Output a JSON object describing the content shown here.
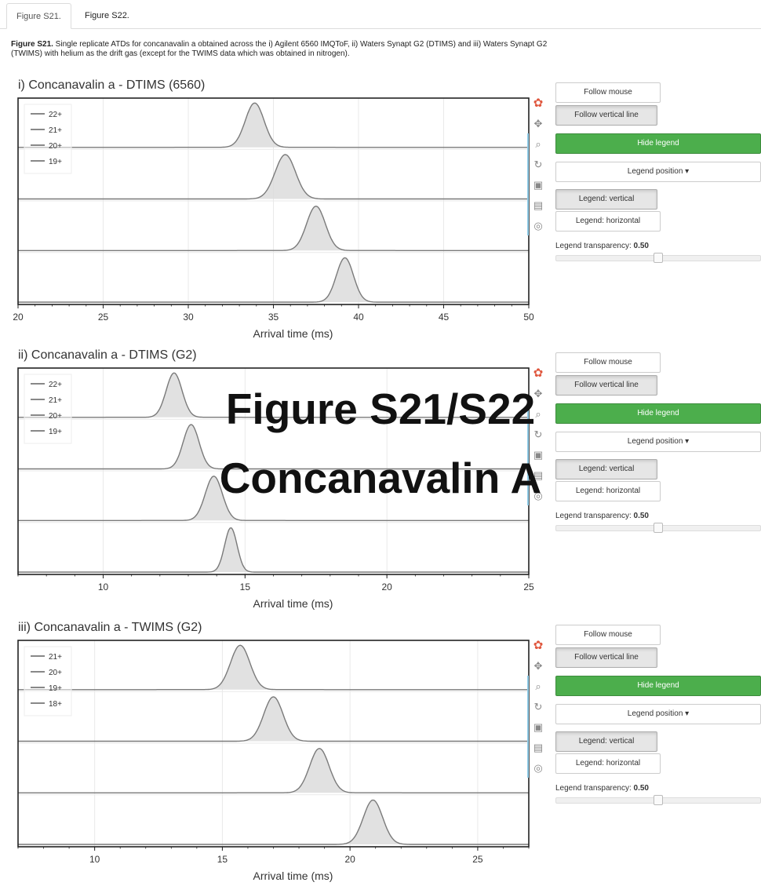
{
  "tabs": [
    {
      "label": "Figure S21."
    },
    {
      "label": "Figure S22."
    }
  ],
  "caption": {
    "bold": "Figure S21.",
    "text": " Single replicate ATDs for concanavalin a obtained across the i) Agilent 6560 IMQToF, ii) Waters Synapt G2 (DTIMS) and iii) Waters Synapt G2 (TWIMS) with helium as the drift gas (except for the TWIMS data which was obtained in nitrogen)."
  },
  "overlay": {
    "line1": "Figure S21/S22",
    "line2": "Concanavalin A"
  },
  "controls": {
    "follow_mouse": "Follow mouse",
    "follow_vertical_line": "Follow vertical line",
    "hide_legend": "Hide legend",
    "legend_position": "Legend position",
    "legend_vertical": "Legend: vertical",
    "legend_horizontal": "Legend: horizontal",
    "legend_transparency_label": "Legend transparency:",
    "legend_transparency_value": "0.50",
    "hide_legend_color": "#4cae4c"
  },
  "toolbar_icons": [
    "bokeh-logo-icon",
    "pan-icon",
    "zoom-icon",
    "reset-icon",
    "save-icon",
    "hover-icon",
    "crosshair-icon"
  ],
  "chart_data": [
    {
      "type": "area",
      "title": "i) Concanavalin a - DTIMS (6560)",
      "xlabel": "Arrival time (ms)",
      "ylabel": "",
      "xlim": [
        20,
        50
      ],
      "xticks": [
        20,
        25,
        30,
        35,
        40,
        45,
        50
      ],
      "grid": true,
      "legend_position": "top-left",
      "series": [
        {
          "name": "22+",
          "peak_center": 33.9,
          "peak_width": 0.55
        },
        {
          "name": "21+",
          "peak_center": 35.7,
          "peak_width": 0.6
        },
        {
          "name": "20+",
          "peak_center": 37.5,
          "peak_width": 0.55
        },
        {
          "name": "19+",
          "peak_center": 39.2,
          "peak_width": 0.5
        }
      ]
    },
    {
      "type": "area",
      "title": "ii) Concanavalin a - DTIMS (G2)",
      "xlabel": "Arrival time (ms)",
      "ylabel": "",
      "xlim": [
        7,
        25
      ],
      "xticks": [
        10,
        15,
        20,
        25
      ],
      "grid": true,
      "legend_position": "top-left",
      "series": [
        {
          "name": "22+",
          "peak_center": 12.5,
          "peak_width": 0.28
        },
        {
          "name": "21+",
          "peak_center": 13.1,
          "peak_width": 0.28
        },
        {
          "name": "20+",
          "peak_center": 13.9,
          "peak_width": 0.3
        },
        {
          "name": "19+",
          "peak_center": 14.5,
          "peak_width": 0.22
        }
      ]
    },
    {
      "type": "area",
      "title": "iii) Concanavalin a - TWIMS (G2)",
      "xlabel": "Arrival time (ms)",
      "ylabel": "",
      "xlim": [
        7,
        27
      ],
      "xticks": [
        10,
        15,
        20,
        25
      ],
      "grid": true,
      "legend_position": "top-left",
      "series": [
        {
          "name": "21+",
          "peak_center": 15.7,
          "peak_width": 0.38
        },
        {
          "name": "20+",
          "peak_center": 17.0,
          "peak_width": 0.38
        },
        {
          "name": "19+",
          "peak_center": 18.8,
          "peak_width": 0.38
        },
        {
          "name": "18+",
          "peak_center": 20.9,
          "peak_width": 0.38
        }
      ]
    }
  ]
}
